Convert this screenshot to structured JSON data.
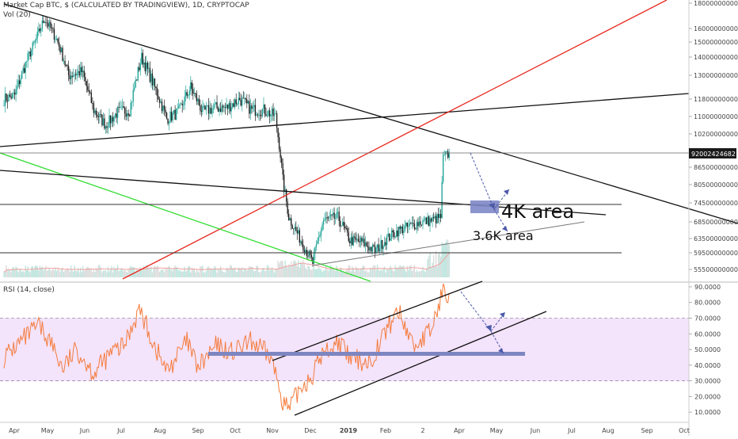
{
  "header": {
    "symbol_line": "Market Cap BTC, $ (CALCULATED BY TRADINGVIEW), 1D, CRYPTOCAP",
    "volume_line": "Vol (20)",
    "rsi_line": "RSI (14, close)"
  },
  "annotations": {
    "area_4k": "4K area",
    "area_3_6k": "3.6K area"
  },
  "colors": {
    "candle_up": "#26a69a",
    "candle_down": "#222222",
    "rsi_line": "#f57c3c",
    "rsi_band": "#f3e3fb",
    "red_trend": "#e8281e",
    "green_trend": "#33dd33",
    "box": "#8088c8",
    "arrow": "#4d5aa8"
  },
  "chart_data": [
    {
      "type": "candlestick",
      "name": "Market Cap BTC, $ (CALCULATED BY TRADINGVIEW), 1D",
      "x_tick_labels": [
        "Apr",
        "May",
        "Jun",
        "Jul",
        "Aug",
        "Sep",
        "Oct",
        "Nov",
        "Dec",
        "2019",
        "Feb",
        "2",
        "Apr",
        "May",
        "Jun",
        "Jul",
        "Aug",
        "Sep",
        "Oct"
      ],
      "y_tick_labels": [
        "180000000000",
        "160000000000",
        "150000000000",
        "140000000000",
        "130000000000",
        "118000000000",
        "110000000000",
        "102000000000",
        "92002424682",
        "86500000000",
        "80500000000",
        "74500000000",
        "68500000000",
        "63500000000",
        "59500000000",
        "55500000000"
      ],
      "last_value_label": "92002424682",
      "ylim": [
        55500000000,
        180000000000
      ],
      "x_start": "2018-04-01",
      "close_points": [
        [
          "2018-04-01",
          118000000000
        ],
        [
          "2018-04-10",
          120000000000
        ],
        [
          "2018-04-20",
          138000000000
        ],
        [
          "2018-04-27",
          150000000000
        ],
        [
          "2018-05-05",
          168000000000
        ],
        [
          "2018-05-15",
          152000000000
        ],
        [
          "2018-05-25",
          130000000000
        ],
        [
          "2018-06-05",
          132000000000
        ],
        [
          "2018-06-15",
          113000000000
        ],
        [
          "2018-06-25",
          106000000000
        ],
        [
          "2018-07-05",
          112000000000
        ],
        [
          "2018-07-15",
          113000000000
        ],
        [
          "2018-07-25",
          140000000000
        ],
        [
          "2018-08-05",
          124000000000
        ],
        [
          "2018-08-15",
          109000000000
        ],
        [
          "2018-08-25",
          112000000000
        ],
        [
          "2018-09-04",
          124000000000
        ],
        [
          "2018-09-14",
          112000000000
        ],
        [
          "2018-09-24",
          114000000000
        ],
        [
          "2018-10-04",
          114000000000
        ],
        [
          "2018-10-15",
          118000000000
        ],
        [
          "2018-10-25",
          113000000000
        ],
        [
          "2018-11-04",
          113000000000
        ],
        [
          "2018-11-14",
          110000000000
        ],
        [
          "2018-11-20",
          82000000000
        ],
        [
          "2018-11-25",
          70000000000
        ],
        [
          "2018-12-05",
          63000000000
        ],
        [
          "2018-12-15",
          57000000000
        ],
        [
          "2018-12-24",
          69000000000
        ],
        [
          "2019-01-05",
          70000000000
        ],
        [
          "2019-01-15",
          63000000000
        ],
        [
          "2019-01-25",
          62500000000
        ],
        [
          "2019-02-05",
          60000000000
        ],
        [
          "2019-02-15",
          63500000000
        ],
        [
          "2019-02-25",
          66000000000
        ],
        [
          "2019-03-05",
          67000000000
        ],
        [
          "2019-03-15",
          68500000000
        ],
        [
          "2019-03-25",
          69000000000
        ],
        [
          "2019-04-01",
          70000000000
        ],
        [
          "2019-04-03",
          90000000000
        ],
        [
          "2019-04-08",
          92000000000
        ]
      ]
    },
    {
      "type": "line",
      "name": "RSI (14, close)",
      "y_tick_labels": [
        "90.0000",
        "80.0000",
        "70.0000",
        "60.0000",
        "50.0000",
        "40.0000",
        "30.0000",
        "20.0000",
        "10.0000"
      ],
      "ylim": [
        5,
        92
      ],
      "band": [
        30,
        70
      ],
      "points": [
        [
          "2018-04-01",
          45
        ],
        [
          "2018-04-15",
          55
        ],
        [
          "2018-04-30",
          65
        ],
        [
          "2018-05-10",
          55
        ],
        [
          "2018-05-20",
          38
        ],
        [
          "2018-06-01",
          50
        ],
        [
          "2018-06-15",
          35
        ],
        [
          "2018-06-30",
          48
        ],
        [
          "2018-07-10",
          52
        ],
        [
          "2018-07-23",
          76
        ],
        [
          "2018-08-05",
          52
        ],
        [
          "2018-08-15",
          36
        ],
        [
          "2018-09-01",
          55
        ],
        [
          "2018-09-10",
          38
        ],
        [
          "2018-09-25",
          52
        ],
        [
          "2018-10-10",
          48
        ],
        [
          "2018-10-25",
          55
        ],
        [
          "2018-11-10",
          45
        ],
        [
          "2018-11-20",
          18
        ],
        [
          "2018-11-25",
          11
        ],
        [
          "2018-12-05",
          26
        ],
        [
          "2018-12-15",
          34
        ],
        [
          "2018-12-22",
          46
        ],
        [
          "2019-01-05",
          55
        ],
        [
          "2019-01-15",
          44
        ],
        [
          "2019-02-01",
          42
        ],
        [
          "2019-02-10",
          56
        ],
        [
          "2019-02-24",
          75
        ],
        [
          "2019-03-10",
          52
        ],
        [
          "2019-03-24",
          62
        ],
        [
          "2019-04-03",
          88
        ],
        [
          "2019-04-08",
          86
        ]
      ]
    }
  ]
}
